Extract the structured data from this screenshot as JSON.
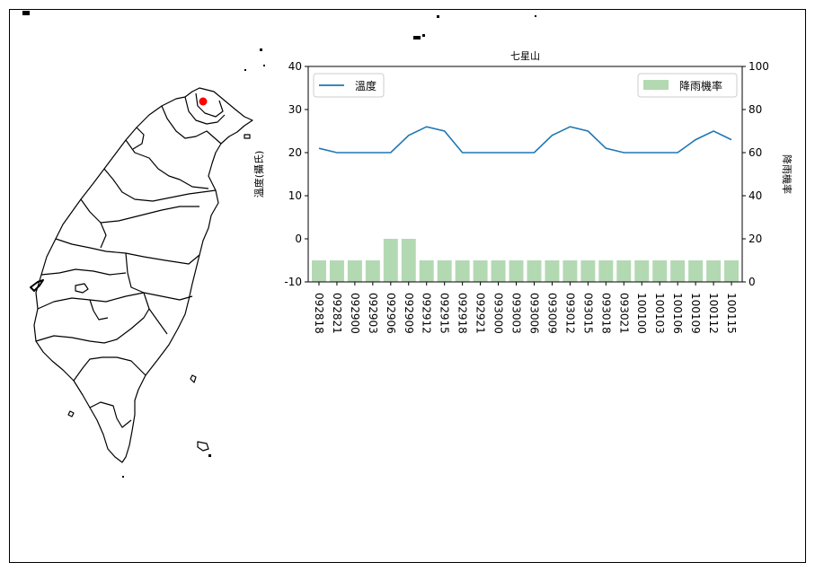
{
  "chart_data": {
    "type": "bar",
    "title": "七星山",
    "categories": [
      "092818",
      "092821",
      "092900",
      "092903",
      "092906",
      "092909",
      "092912",
      "092915",
      "092918",
      "092921",
      "093000",
      "093003",
      "093006",
      "093009",
      "093012",
      "093015",
      "093018",
      "093021",
      "100100",
      "100103",
      "100106",
      "100109",
      "100112",
      "100115"
    ],
    "series": [
      {
        "name": "溫度",
        "kind": "line",
        "axis": "left",
        "values": [
          21,
          20,
          20,
          20,
          20,
          24,
          26,
          25,
          20,
          20,
          20,
          20,
          20,
          24,
          26,
          25,
          21,
          20,
          20,
          20,
          20,
          23,
          25,
          23
        ]
      },
      {
        "name": "降雨機率",
        "kind": "bar",
        "axis": "right",
        "values": [
          10,
          10,
          10,
          10,
          20,
          20,
          10,
          10,
          10,
          10,
          10,
          10,
          10,
          10,
          10,
          10,
          10,
          10,
          10,
          10,
          10,
          10,
          10,
          10
        ]
      }
    ],
    "ylabel": "溫度(攝氏)",
    "ylabel_right": "降雨機率",
    "ylim": [
      -10,
      40
    ],
    "ylim_right": [
      0,
      100
    ],
    "yticks": [
      -10,
      0,
      10,
      20,
      30,
      40
    ],
    "yticks_right": [
      0,
      20,
      40,
      60,
      80,
      100
    ],
    "grid": false,
    "legend_left_placement": "upper-left",
    "legend_right_placement": "upper-right",
    "colors": {
      "line": "#1f77b4",
      "bar": "#b3d9b3",
      "marker": "#ff0000"
    }
  },
  "map": {
    "subject": "taiwan-outline",
    "marker": "qixingshan-location"
  }
}
